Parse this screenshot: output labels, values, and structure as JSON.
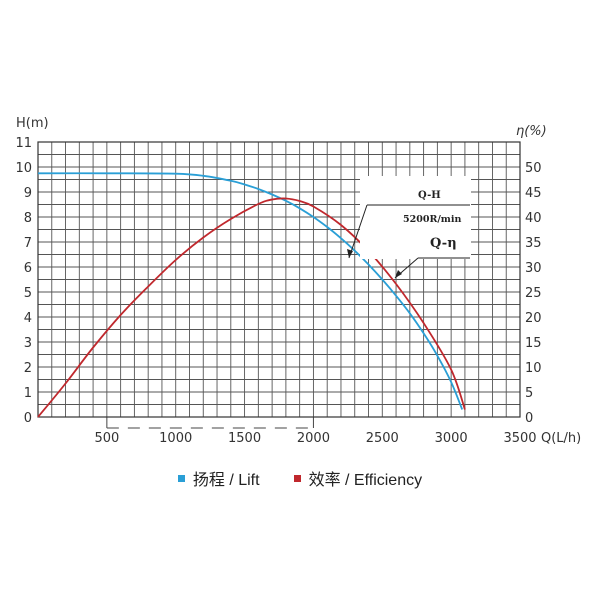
{
  "chart_data": {
    "type": "line",
    "x_axis": {
      "label": "Q(L/h)",
      "min": 0,
      "max": 3500,
      "ticks": [
        500,
        1000,
        1500,
        2000,
        2500,
        3000,
        3500
      ],
      "tick_labels": [
        "500",
        "1000",
        "1500",
        "2000",
        "2500",
        "3000",
        "3500"
      ]
    },
    "y_left": {
      "label": "H(m)",
      "min": 0,
      "max": 11,
      "ticks": [
        0,
        1,
        2,
        3,
        4,
        5,
        6,
        7,
        8,
        9,
        10,
        11
      ],
      "tick_labels": [
        "0",
        "1",
        "2",
        "3",
        "4",
        "5",
        "6",
        "7",
        "8",
        "9",
        "10",
        "11"
      ]
    },
    "y_right": {
      "label": "η(%)",
      "min": 0,
      "max": 55,
      "ticks": [
        0,
        5,
        10,
        15,
        20,
        25,
        30,
        35,
        40,
        45,
        50
      ],
      "tick_labels": [
        "0",
        "5",
        "10",
        "15",
        "20",
        "25",
        "30",
        "35",
        "40",
        "45",
        "50"
      ]
    },
    "grid": true,
    "series": [
      {
        "name": "扬程 / Lift",
        "curve_label": "Q-H",
        "axis": "left",
        "color": "#2a9fd6",
        "x": [
          0,
          500,
          1000,
          1200,
          1400,
          1500,
          1600,
          1700,
          1800,
          1900,
          2000,
          2100,
          2200,
          2300,
          2400,
          2500,
          2600,
          2700,
          2800,
          2900,
          3000,
          3080
        ],
        "y": [
          9.75,
          9.75,
          9.73,
          9.65,
          9.45,
          9.3,
          9.12,
          8.9,
          8.65,
          8.35,
          8.0,
          7.6,
          7.15,
          6.65,
          6.1,
          5.5,
          4.85,
          4.15,
          3.35,
          2.45,
          1.4,
          0.3
        ]
      },
      {
        "name": "效率 / Efficiency",
        "curve_label": "Q-η",
        "axis": "right",
        "color": "#c0282d",
        "x": [
          0,
          200,
          400,
          600,
          800,
          1000,
          1200,
          1400,
          1600,
          1700,
          1800,
          1900,
          2000,
          2200,
          2400,
          2600,
          2800,
          3000,
          3100
        ],
        "y": [
          0,
          6.7,
          13.9,
          20.4,
          26.1,
          31.4,
          35.9,
          39.6,
          42.6,
          43.5,
          43.7,
          43.2,
          42.1,
          38.4,
          33.2,
          26.6,
          18.8,
          9.5,
          1.5
        ]
      }
    ],
    "annotations": {
      "speed": "5200R/min"
    },
    "legend_position": "bottom"
  }
}
